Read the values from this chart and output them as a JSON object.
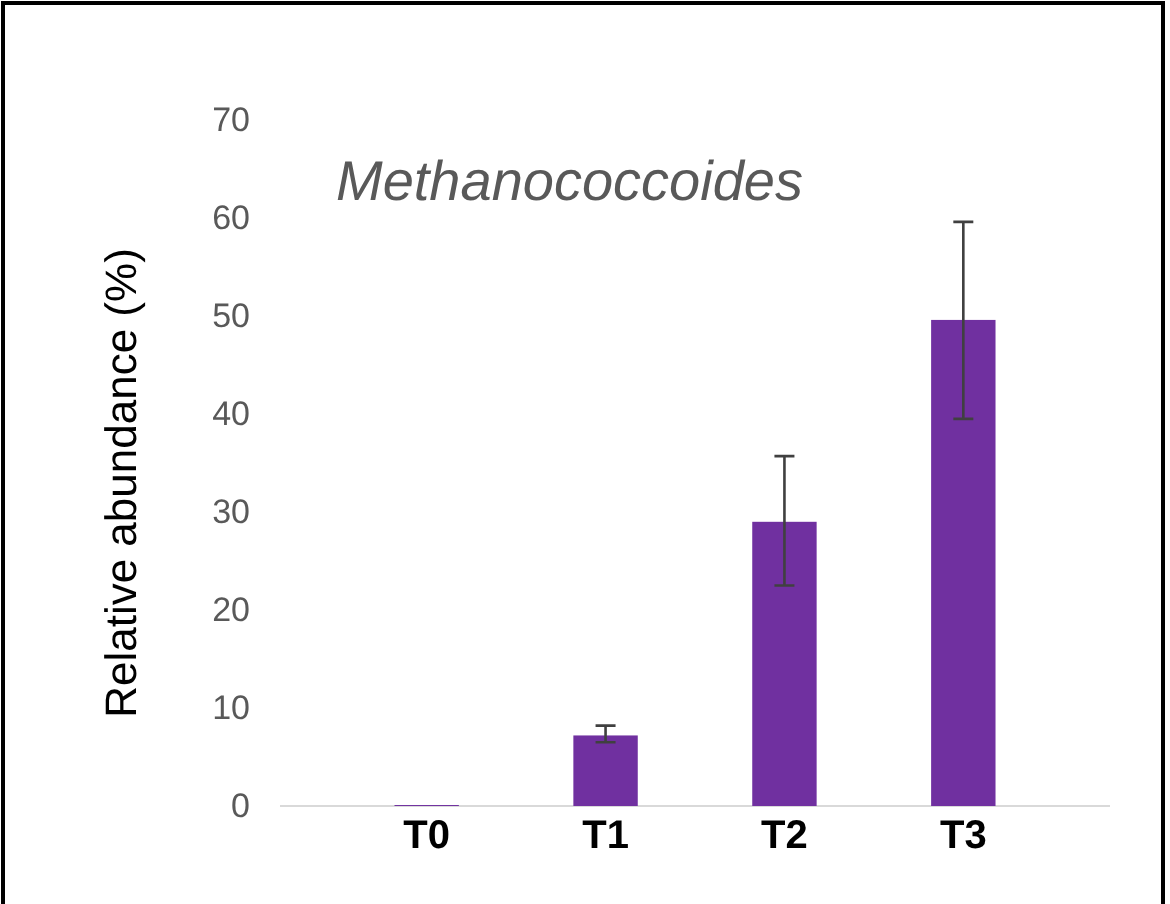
{
  "chart_data": {
    "type": "bar",
    "title": "Methanococcoides",
    "ylabel": "Relative abundance (%)",
    "categories": [
      "T0",
      "T1",
      "T2",
      "T3"
    ],
    "values": [
      0.1,
      7.2,
      29,
      49.6
    ],
    "errors": [
      null,
      [
        6.5,
        8.2
      ],
      [
        22.5,
        35.7
      ],
      [
        39.5,
        59.6
      ]
    ],
    "color": "#7030a0",
    "ylim": [
      0,
      70
    ],
    "yticks": [
      0,
      10,
      20,
      30,
      40,
      50,
      60,
      70
    ],
    "grid": false
  }
}
